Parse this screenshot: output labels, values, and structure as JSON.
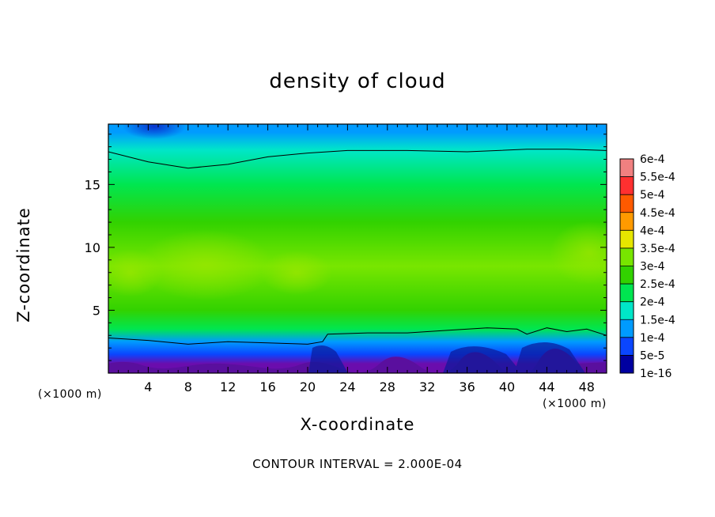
{
  "chart_data": {
    "type": "heatmap",
    "title": "density of cloud",
    "xlabel": "X-coordinate",
    "ylabel": "Z-coordinate",
    "x_unit": "(×1000 m)",
    "y_unit": "(×1000 m)",
    "xlim": [
      0,
      50
    ],
    "ylim": [
      0,
      19.8
    ],
    "x_ticks": [
      4,
      8,
      12,
      16,
      20,
      24,
      28,
      32,
      36,
      40,
      44,
      48
    ],
    "y_ticks": [
      5,
      10,
      15
    ],
    "note": "CONTOUR INTERVAL = 2.000E-04",
    "colorbar": {
      "labels": [
        "6e-4",
        "5.5e-4",
        "5e-4",
        "4.5e-4",
        "4e-4",
        "3.5e-4",
        "3e-4",
        "2.5e-4",
        "2e-4",
        "1.5e-4",
        "1e-4",
        "5e-5",
        "1e-16"
      ],
      "colors": [
        "#f08080",
        "#ff3030",
        "#ff5a00",
        "#ff9a00",
        "#e6e600",
        "#78e600",
        "#32d200",
        "#00e650",
        "#00e6c8",
        "#009bff",
        "#0a46ff",
        "#0000a0",
        "#6a0dad"
      ]
    },
    "contour_lines": [
      {
        "level": "2e-4",
        "x": [
          0,
          4,
          8,
          12,
          16,
          20,
          24,
          30,
          36,
          42,
          46,
          50
        ],
        "z": [
          17.6,
          16.8,
          16.3,
          16.6,
          17.2,
          17.5,
          17.7,
          17.7,
          17.6,
          17.8,
          17.8,
          17.7
        ]
      },
      {
        "level": "2e-4",
        "x": [
          0,
          4,
          8,
          12,
          16,
          20,
          21.5,
          22,
          26,
          30,
          34,
          38,
          41,
          42,
          44,
          46,
          48,
          50
        ],
        "z": [
          2.8,
          2.6,
          2.3,
          2.5,
          2.4,
          2.3,
          2.5,
          3.1,
          3.2,
          3.2,
          3.4,
          3.6,
          3.5,
          3.1,
          3.6,
          3.3,
          3.5,
          3.0
        ]
      }
    ],
    "bands": [
      {
        "zmin": 18.5,
        "zmax": 19.8,
        "level": "1.5e-4"
      },
      {
        "zmin": 17.0,
        "zmax": 18.5,
        "level": "2e-4"
      },
      {
        "zmin": 13.0,
        "zmax": 17.0,
        "level": "2.5e-4"
      },
      {
        "zmin": 11.0,
        "zmax": 13.0,
        "level": "3e-4"
      },
      {
        "zmin": 6.0,
        "zmax": 11.0,
        "level": "3.5e-4"
      },
      {
        "zmin": 4.0,
        "zmax": 6.0,
        "level": "3e-4"
      },
      {
        "zmin": 3.0,
        "zmax": 4.0,
        "level": "2.5e-4"
      },
      {
        "zmin": 2.0,
        "zmax": 3.0,
        "level": "1.5e-4"
      },
      {
        "zmin": 1.0,
        "zmax": 2.0,
        "level": "1e-4"
      },
      {
        "zmin": 0.5,
        "zmax": 1.0,
        "level": "1e-16"
      }
    ]
  }
}
